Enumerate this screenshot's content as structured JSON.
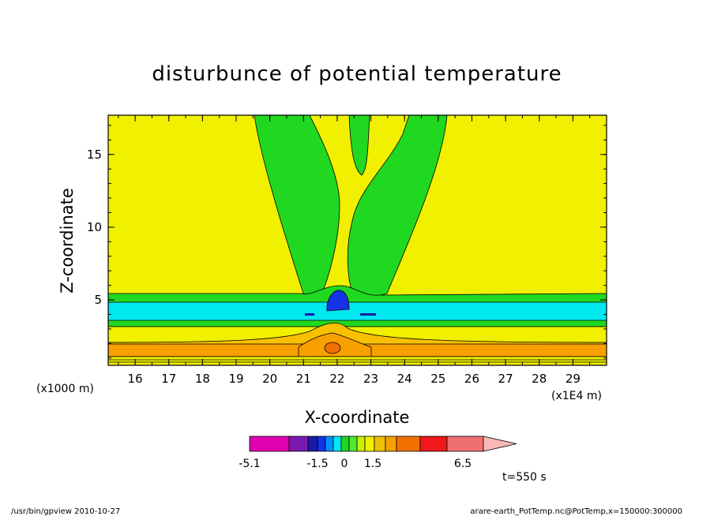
{
  "chart_data": {
    "type": "contour",
    "title": "disturbunce of potential temperature",
    "xlabel": "X-coordinate",
    "ylabel": "Z-coordinate",
    "x_ticks": [
      "16",
      "17",
      "18",
      "19",
      "20",
      "21",
      "22",
      "23",
      "24",
      "25",
      "26",
      "27",
      "28",
      "29"
    ],
    "y_ticks": [
      "5",
      "10",
      "15"
    ],
    "xlim": [
      15.2,
      30.0
    ],
    "ylim": [
      0.5,
      17.7
    ],
    "x_units_left": "(x1000 m)",
    "x_units_right": "(x1E4 m)",
    "colorbar": {
      "labels": [
        "-5.1",
        "-1.5",
        "0",
        "1.5",
        "6.5"
      ],
      "colors": [
        "#e000b0",
        "#7a1ab0",
        "#1a1aa8",
        "#1432e6",
        "#0090ff",
        "#00e8f0",
        "#20d820",
        "#50e830",
        "#c8f000",
        "#f0f000",
        "#f0c000",
        "#f8a000",
        "#f07000",
        "#f01818",
        "#f07070",
        "#f8b8b8"
      ]
    },
    "time_label": "t=550 s",
    "colors": {
      "positive_small": "#f0f000",
      "negative_small": "#20d820",
      "negative_mid": "#00e8f0",
      "negative_large": "#1432e6",
      "positive_mid": "#f8a000",
      "positive_large": "#f07000"
    }
  },
  "footer": {
    "left": "/usr/bin/gpview  2010-10-27",
    "right": "arare-earth_PotTemp.nc@PotTemp,x=150000:300000"
  }
}
